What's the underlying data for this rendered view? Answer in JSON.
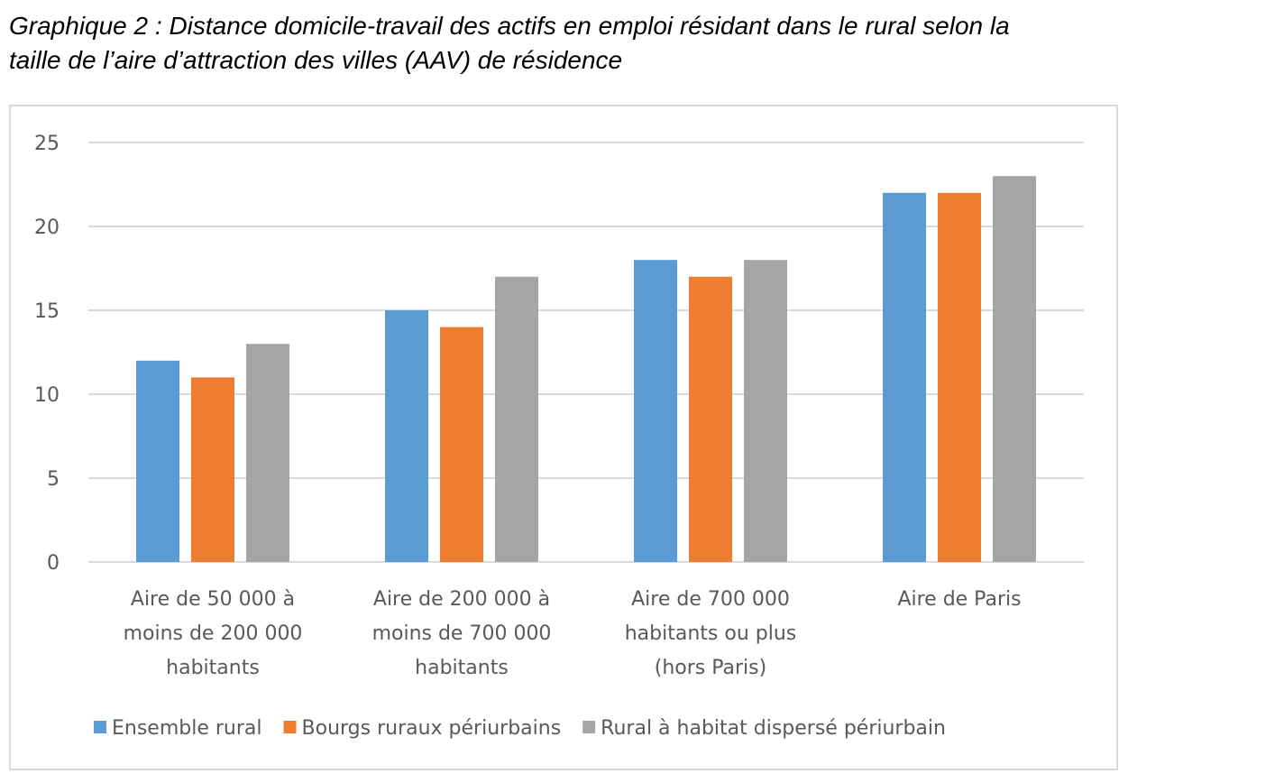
{
  "caption": {
    "line1": "Graphique 2 : Distance domicile-travail des actifs en emploi résidant dans le rural selon la",
    "line2": "taille de l’aire d’attraction des villes (AAV) de résidence"
  },
  "chart_data": {
    "type": "bar",
    "title": "Graphique 2 : Distance domicile-travail des actifs en emploi résidant dans le rural selon la taille de l’aire d’attraction des villes (AAV) de résidence",
    "xlabel": "",
    "ylabel": "",
    "ylim": [
      0,
      25
    ],
    "yticks": [
      0,
      5,
      10,
      15,
      20,
      25
    ],
    "grid": true,
    "legend_position": "bottom",
    "categories": [
      [
        "Aire de 50 000 à",
        "moins de 200 000",
        "habitants"
      ],
      [
        "Aire de 200 000 à",
        "moins de 700 000",
        "habitants"
      ],
      [
        "Aire de 700 000",
        "habitants ou plus",
        "(hors Paris)"
      ],
      [
        "Aire de Paris"
      ]
    ],
    "series": [
      {
        "name": "Ensemble rural",
        "color": "#5b9bd5",
        "values": [
          12,
          15,
          18,
          22
        ]
      },
      {
        "name": "Bourgs ruraux périurbains",
        "color": "#ed7d31",
        "values": [
          11,
          14,
          17,
          22
        ]
      },
      {
        "name": "Rural à habitat dispersé périurbain",
        "color": "#a5a5a5",
        "values": [
          13,
          17,
          18,
          23
        ]
      }
    ]
  }
}
